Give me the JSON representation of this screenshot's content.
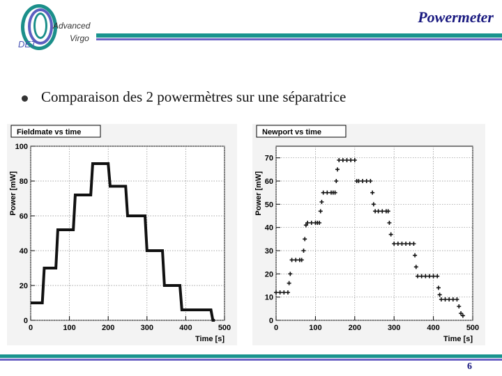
{
  "header": {
    "title": "Powermeter",
    "logo": {
      "det": "DET",
      "advanced": "Advanced",
      "virgo": "Virgo"
    }
  },
  "bullet": "Comparaison des 2 powermètres sur une séparatrice",
  "page_number": "6",
  "colors": {
    "teal": "#19948e",
    "purple": "#6a62c4",
    "title_navy": "#1a1a80"
  },
  "chart_data": [
    {
      "type": "line",
      "title": "Fieldmate vs time",
      "xlabel": "Time [s]",
      "ylabel": "Power [mW]",
      "xlim": [
        0,
        500
      ],
      "ylim": [
        0,
        100
      ],
      "xticks": [
        0,
        100,
        200,
        300,
        400,
        500
      ],
      "yticks": [
        0,
        20,
        40,
        60,
        80,
        100
      ],
      "grid": true,
      "series": [
        {
          "x": [
            0,
            30,
            35,
            65,
            70,
            110,
            115,
            155,
            160,
            200,
            205,
            245,
            250,
            295,
            300,
            340,
            345,
            385,
            390,
            430,
            435,
            465,
            470,
            475
          ],
          "y": [
            10,
            10,
            30,
            30,
            52,
            52,
            72,
            72,
            90,
            90,
            77,
            77,
            60,
            60,
            40,
            40,
            20,
            20,
            6,
            6,
            6,
            6,
            0,
            0
          ]
        }
      ]
    },
    {
      "type": "scatter",
      "title": "Newport vs time",
      "xlabel": "Time [s]",
      "ylabel": "Power [mW]",
      "xlim": [
        0,
        500
      ],
      "ylim": [
        0,
        75
      ],
      "xticks": [
        0,
        100,
        200,
        300,
        400,
        500
      ],
      "yticks": [
        0,
        10,
        20,
        30,
        40,
        50,
        60,
        70
      ],
      "grid": true,
      "series": [
        {
          "x": [
            0,
            10,
            20,
            30,
            33,
            36,
            40,
            50,
            60,
            65,
            70,
            73,
            76,
            80,
            90,
            100,
            105,
            110,
            113,
            116,
            120,
            130,
            140,
            145,
            150,
            153,
            156,
            160,
            170,
            180,
            190,
            200,
            205,
            210,
            220,
            230,
            240,
            245,
            248,
            252,
            260,
            270,
            280,
            285,
            288,
            292,
            300,
            310,
            320,
            330,
            340,
            350,
            353,
            356,
            360,
            370,
            380,
            390,
            400,
            410,
            413,
            416,
            420,
            430,
            440,
            450,
            460,
            465,
            470,
            475
          ],
          "y": [
            12,
            12,
            12,
            12,
            16,
            20,
            26,
            26,
            26,
            26,
            30,
            35,
            41,
            42,
            42,
            42,
            42,
            42,
            47,
            51,
            55,
            55,
            55,
            55,
            55,
            60,
            65,
            69,
            69,
            69,
            69,
            69,
            60,
            60,
            60,
            60,
            60,
            55,
            50,
            47,
            47,
            47,
            47,
            47,
            42,
            37,
            33,
            33,
            33,
            33,
            33,
            33,
            28,
            23,
            19,
            19,
            19,
            19,
            19,
            19,
            14,
            11,
            9,
            9,
            9,
            9,
            9,
            6,
            3,
            2
          ]
        }
      ]
    }
  ]
}
